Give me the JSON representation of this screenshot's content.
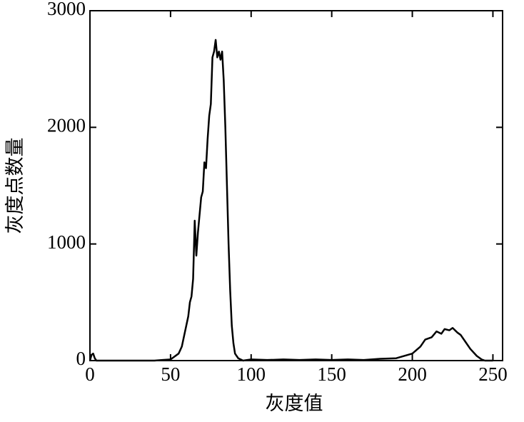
{
  "chart_data": {
    "type": "line",
    "x_label": "灰度值",
    "y_label": "灰度点数量",
    "x": [
      0,
      1,
      2,
      3,
      4,
      10,
      20,
      30,
      40,
      45,
      50,
      52,
      55,
      57,
      59,
      61,
      62,
      63,
      64,
      65,
      66,
      67,
      68,
      69,
      70,
      71,
      72,
      73,
      74,
      75,
      76,
      77,
      78,
      79,
      80,
      81,
      82,
      83,
      84,
      85,
      86,
      87,
      88,
      89,
      90,
      92,
      95,
      100,
      110,
      120,
      130,
      140,
      150,
      160,
      170,
      180,
      190,
      195,
      200,
      205,
      208,
      212,
      215,
      218,
      220,
      223,
      225,
      228,
      230,
      233,
      236,
      240,
      243,
      245,
      250
    ],
    "series": [
      {
        "color": "#000000",
        "values": [
          0,
          50,
          60,
          20,
          0,
          0,
          0,
          0,
          0,
          5,
          10,
          30,
          60,
          120,
          250,
          380,
          500,
          550,
          700,
          1200,
          900,
          1100,
          1250,
          1400,
          1450,
          1700,
          1650,
          1900,
          2100,
          2200,
          2600,
          2650,
          2750,
          2600,
          2650,
          2580,
          2650,
          2400,
          2000,
          1500,
          1000,
          600,
          300,
          150,
          60,
          20,
          0,
          10,
          5,
          10,
          5,
          10,
          5,
          10,
          5,
          15,
          20,
          40,
          60,
          120,
          180,
          200,
          250,
          230,
          270,
          260,
          280,
          240,
          220,
          160,
          100,
          40,
          10,
          0,
          0
        ]
      }
    ],
    "xlim": [
      0,
      256
    ],
    "ylim": [
      0,
      3000
    ],
    "xticks": [
      0,
      50,
      100,
      150,
      200,
      250
    ],
    "yticks": [
      0,
      1000,
      2000,
      3000
    ]
  }
}
